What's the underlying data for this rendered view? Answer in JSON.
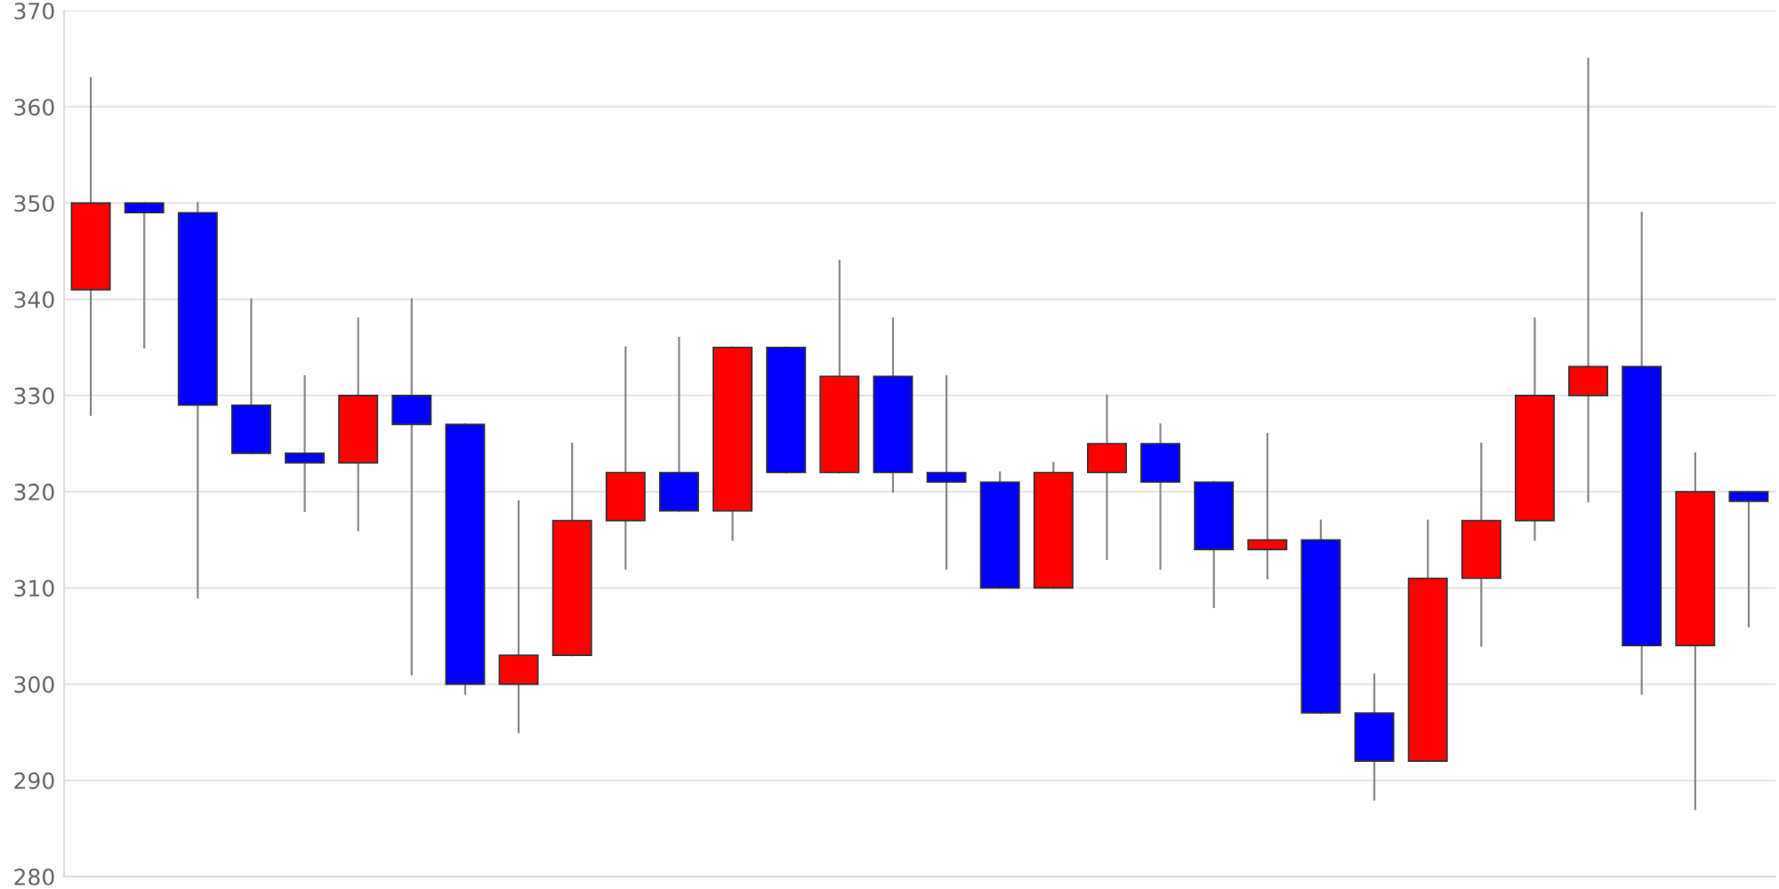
{
  "chart_data": {
    "type": "candlestick",
    "categories": [
      null,
      null,
      null,
      null,
      null,
      null,
      null,
      null,
      null,
      null,
      null,
      null,
      null,
      null,
      null,
      null,
      null,
      null,
      null,
      null,
      null,
      null,
      null,
      null,
      null,
      null,
      null,
      null,
      null,
      null,
      null,
      null
    ],
    "ohlc": [
      [
        341,
        363,
        328,
        350
      ],
      [
        350,
        350,
        335,
        349
      ],
      [
        349,
        350,
        309,
        329
      ],
      [
        329,
        340,
        324,
        324
      ],
      [
        324,
        332,
        318,
        323
      ],
      [
        323,
        338,
        316,
        330
      ],
      [
        330,
        340,
        301,
        327
      ],
      [
        327,
        327,
        299,
        300
      ],
      [
        300,
        319,
        295,
        303
      ],
      [
        303,
        325,
        303,
        317
      ],
      [
        317,
        335,
        312,
        322
      ],
      [
        322,
        336,
        318,
        318
      ],
      [
        318,
        335,
        315,
        335
      ],
      [
        335,
        335,
        322,
        322
      ],
      [
        322,
        344,
        322,
        332
      ],
      [
        332,
        338,
        320,
        322
      ],
      [
        322,
        332,
        312,
        321
      ],
      [
        321,
        322,
        310,
        310
      ],
      [
        310,
        323,
        310,
        322
      ],
      [
        322,
        330,
        313,
        325
      ],
      [
        325,
        327,
        312,
        321
      ],
      [
        321,
        321,
        308,
        314
      ],
      [
        314,
        326,
        311,
        315
      ],
      [
        315,
        317,
        297,
        297
      ],
      [
        297,
        301,
        288,
        292
      ],
      [
        292,
        317,
        292,
        311
      ],
      [
        311,
        325,
        304,
        317
      ],
      [
        317,
        338,
        315,
        330
      ],
      [
        330,
        365,
        319,
        333
      ],
      [
        333,
        349,
        299,
        304
      ],
      [
        304,
        324,
        287,
        320
      ],
      [
        320,
        320,
        306,
        319
      ]
    ],
    "colors": [
      "#ff0000",
      "#0000ff",
      "#0000ff",
      "#0000ff",
      "#0000ff",
      "#ff0000",
      "#0000ff",
      "#0000ff",
      "#ff0000",
      "#ff0000",
      "#ff0000",
      "#0000ff",
      "#ff0000",
      "#0000ff",
      "#ff0000",
      "#0000ff",
      "#0000ff",
      "#0000ff",
      "#ff0000",
      "#ff0000",
      "#0000ff",
      "#0000ff",
      "#ff0000",
      "#0000ff",
      "#0000ff",
      "#ff0000",
      "#ff0000",
      "#ff0000",
      "#ff0000",
      "#0000ff",
      "#ff0000",
      "#0000ff"
    ],
    "ylim": [
      280,
      370
    ],
    "yticks": [
      280,
      290,
      300,
      310,
      320,
      330,
      340,
      350,
      360,
      370
    ],
    "grid": "y",
    "tick_labels": "y"
  }
}
